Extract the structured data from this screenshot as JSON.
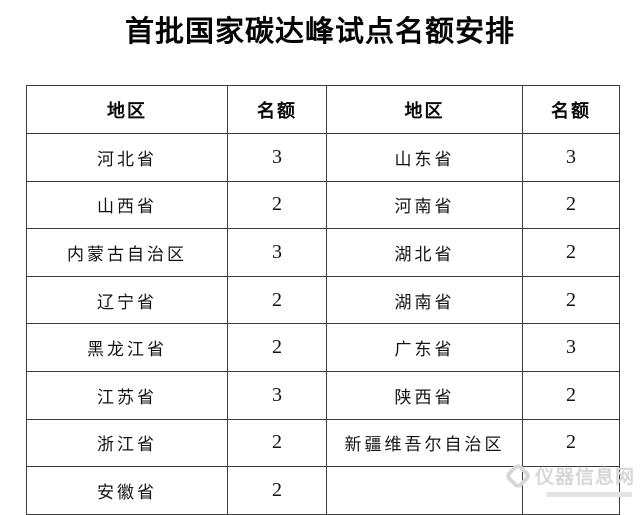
{
  "chart_data": {
    "type": "table",
    "title": "首批国家碳达峰试点名额安排",
    "columns": [
      "地区",
      "名额",
      "地区",
      "名额"
    ],
    "rows": [
      [
        "河北省",
        "3",
        "山东省",
        "3"
      ],
      [
        "山西省",
        "2",
        "河南省",
        "2"
      ],
      [
        "内蒙古自治区",
        "3",
        "湖北省",
        "2"
      ],
      [
        "辽宁省",
        "2",
        "湖南省",
        "2"
      ],
      [
        "黑龙江省",
        "2",
        "广东省",
        "3"
      ],
      [
        "江苏省",
        "3",
        "陕西省",
        "2"
      ],
      [
        "浙江省",
        "2",
        "新疆维吾尔自治区",
        "2"
      ],
      [
        "安徽省",
        "2",
        "",
        ""
      ]
    ],
    "layout": "two side-by-side region/quota column pairs, all cells centered, grid on"
  },
  "watermark": {
    "site_name": "仪器信息网"
  },
  "colors": {
    "background": "#ffffff",
    "text": "#000000",
    "border": "#3c3c3c",
    "watermark_gray": "#d7d7d7"
  }
}
